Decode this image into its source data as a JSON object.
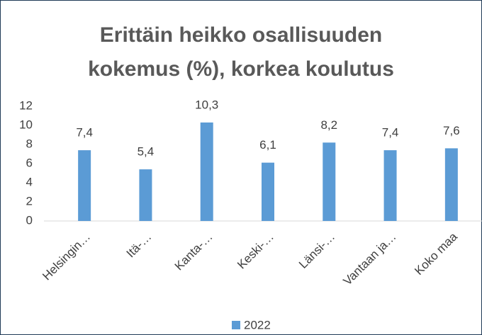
{
  "chart_data": {
    "type": "bar",
    "title": "Erittäin heikko osallisuuden kokemus (%), korkea koulutus",
    "categories": [
      "Helsingin…",
      "Itä-…",
      "Kanta-…",
      "Keski-…",
      "Länsi-…",
      "Vantaan ja…",
      "Koko maa"
    ],
    "series": [
      {
        "name": "2022",
        "color": "#5b9bd5",
        "values": [
          7.4,
          5.4,
          10.3,
          6.1,
          8.2,
          7.4,
          7.6
        ],
        "value_labels": [
          "7,4",
          "5,4",
          "10,3",
          "6,1",
          "8,2",
          "7,4",
          "7,6"
        ]
      }
    ],
    "ylim": [
      0,
      12
    ],
    "yticks": [
      0,
      2,
      4,
      6,
      8,
      10,
      12
    ],
    "grid": false,
    "legend": "bottom"
  }
}
